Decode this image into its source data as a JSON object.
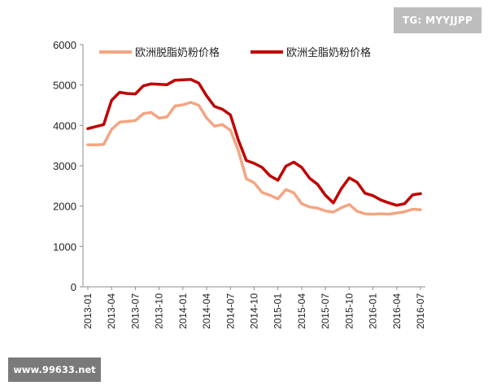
{
  "watermarks": {
    "top": "TG: MYYJJPP",
    "bottom": "www.99633.net"
  },
  "chart_data": {
    "type": "line",
    "ylim": [
      0,
      6000
    ],
    "yticks": [
      "0",
      "1000",
      "2000",
      "3000",
      "4000",
      "5000",
      "6000"
    ],
    "xtick_labels": [
      "2013-01",
      "2013-04",
      "2013-07",
      "2013-10",
      "2014-01",
      "2014-04",
      "2014-07",
      "2014-10",
      "2015-01",
      "2015-04",
      "2015-07",
      "2015-10",
      "2016-01",
      "2016-04",
      "2016-07"
    ],
    "legend_position": "top",
    "series": [
      {
        "name": "欧洲脱脂奶粉价格",
        "color": "#F4A582",
        "x": [
          "2013-01",
          "2013-02",
          "2013-03",
          "2013-04",
          "2013-05",
          "2013-06",
          "2013-07",
          "2013-08",
          "2013-09",
          "2013-10",
          "2013-11",
          "2013-12",
          "2014-01",
          "2014-02",
          "2014-03",
          "2014-04",
          "2014-05",
          "2014-06",
          "2014-07",
          "2014-08",
          "2014-09",
          "2014-10",
          "2014-11",
          "2014-12",
          "2015-01",
          "2015-02",
          "2015-03",
          "2015-04",
          "2015-05",
          "2015-06",
          "2015-07",
          "2015-08",
          "2015-09",
          "2015-10",
          "2015-11",
          "2015-12",
          "2016-01",
          "2016-02",
          "2016-03",
          "2016-04",
          "2016-05",
          "2016-06",
          "2016-07"
        ],
        "values": [
          3520,
          3520,
          3530,
          3900,
          4080,
          4100,
          4120,
          4290,
          4320,
          4180,
          4210,
          4480,
          4510,
          4570,
          4500,
          4180,
          3980,
          4020,
          3880,
          3380,
          2680,
          2580,
          2340,
          2270,
          2180,
          2410,
          2330,
          2060,
          1980,
          1950,
          1880,
          1850,
          1960,
          2040,
          1870,
          1810,
          1800,
          1810,
          1800,
          1830,
          1860,
          1920,
          1910
        ]
      },
      {
        "name": "欧洲全脂奶粉价格",
        "color": "#C00000",
        "x": [
          "2013-01",
          "2013-02",
          "2013-03",
          "2013-04",
          "2013-05",
          "2013-06",
          "2013-07",
          "2013-08",
          "2013-09",
          "2013-10",
          "2013-11",
          "2013-12",
          "2014-01",
          "2014-02",
          "2014-03",
          "2014-04",
          "2014-05",
          "2014-06",
          "2014-07",
          "2014-08",
          "2014-09",
          "2014-10",
          "2014-11",
          "2014-12",
          "2015-01",
          "2015-02",
          "2015-03",
          "2015-04",
          "2015-05",
          "2015-06",
          "2015-07",
          "2015-08",
          "2015-09",
          "2015-10",
          "2015-11",
          "2015-12",
          "2016-01",
          "2016-02",
          "2016-03",
          "2016-04",
          "2016-05",
          "2016-06",
          "2016-07"
        ],
        "values": [
          3920,
          3970,
          4020,
          4620,
          4820,
          4790,
          4780,
          4980,
          5030,
          5020,
          5010,
          5120,
          5130,
          5140,
          5050,
          4730,
          4470,
          4400,
          4260,
          3640,
          3130,
          3060,
          2960,
          2750,
          2640,
          2990,
          3090,
          2960,
          2690,
          2540,
          2270,
          2080,
          2430,
          2700,
          2590,
          2320,
          2260,
          2150,
          2080,
          2020,
          2060,
          2280,
          2310
        ]
      }
    ]
  }
}
